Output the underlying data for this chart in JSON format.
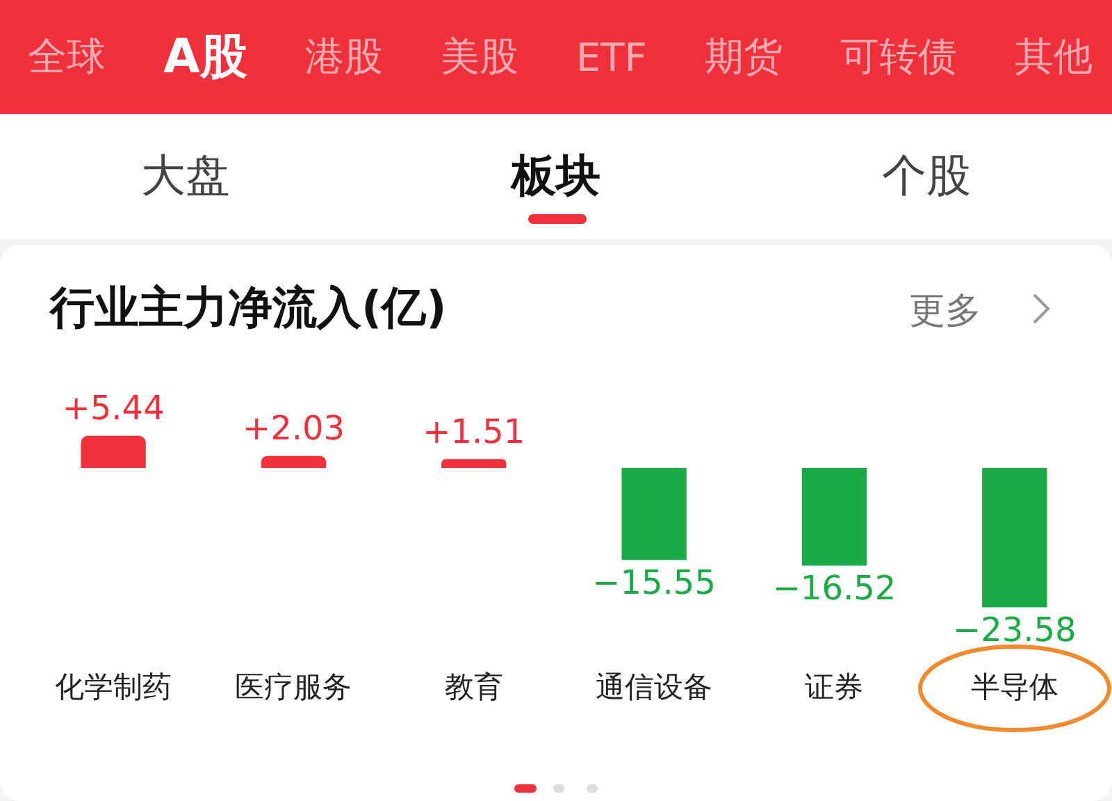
{
  "chart_data": {
    "type": "bar",
    "title": "行业主力净流入(亿)",
    "categories": [
      "化学制药",
      "医疗服务",
      "教育",
      "通信设备",
      "证券",
      "半导体"
    ],
    "values": [
      5.44,
      2.03,
      1.51,
      -15.55,
      -16.52,
      -23.58
    ],
    "value_labels": [
      "+5.44",
      "+2.03",
      "+1.51",
      "−15.55",
      "−16.52",
      "−23.58"
    ],
    "colors": [
      "#f0303d",
      "#f0303d",
      "#f0303d",
      "#1aaa48",
      "#1aaa48",
      "#1aaa48"
    ],
    "tick_labels": "x",
    "grid": false,
    "legend": false,
    "annotations": [
      "全球",
      "A股",
      "港股",
      "美股",
      "ETF",
      "期货",
      "可转债",
      "其他",
      "大盘",
      "板块",
      "个股",
      "更多"
    ]
  }
}
